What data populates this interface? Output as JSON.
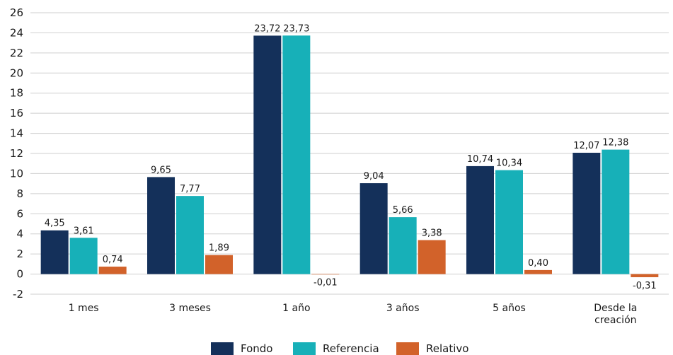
{
  "chart_data": {
    "type": "bar",
    "categories": [
      [
        "1 mes"
      ],
      [
        "3 meses"
      ],
      [
        "1 año"
      ],
      [
        "3 años"
      ],
      [
        "5 años"
      ],
      [
        "Desde la",
        "creación"
      ]
    ],
    "series": [
      {
        "name": "Fondo",
        "color": "#14305a",
        "values": [
          4.35,
          9.65,
          23.72,
          9.04,
          10.74,
          12.07
        ],
        "labels": [
          "4,35",
          "9,65",
          "23,72",
          "9,04",
          "10,74",
          "12,07"
        ]
      },
      {
        "name": "Referencia",
        "color": "#17b0b8",
        "values": [
          3.61,
          7.77,
          23.73,
          5.66,
          10.34,
          12.38
        ],
        "labels": [
          "3,61",
          "7,77",
          "23,73",
          "5,66",
          "10,34",
          "12,38"
        ]
      },
      {
        "name": "Relativo",
        "color": "#d2622a",
        "values": [
          0.74,
          1.89,
          -0.01,
          3.38,
          0.4,
          -0.31
        ],
        "labels": [
          "0,74",
          "1,89",
          "-0,01",
          "3,38",
          "0,40",
          "-0,31"
        ]
      }
    ],
    "ylim": [
      -2,
      26
    ],
    "yticks": [
      -2,
      0,
      2,
      4,
      6,
      8,
      10,
      12,
      14,
      16,
      18,
      20,
      22,
      24,
      26
    ],
    "grid": true,
    "legend_position": "bottom-center"
  }
}
